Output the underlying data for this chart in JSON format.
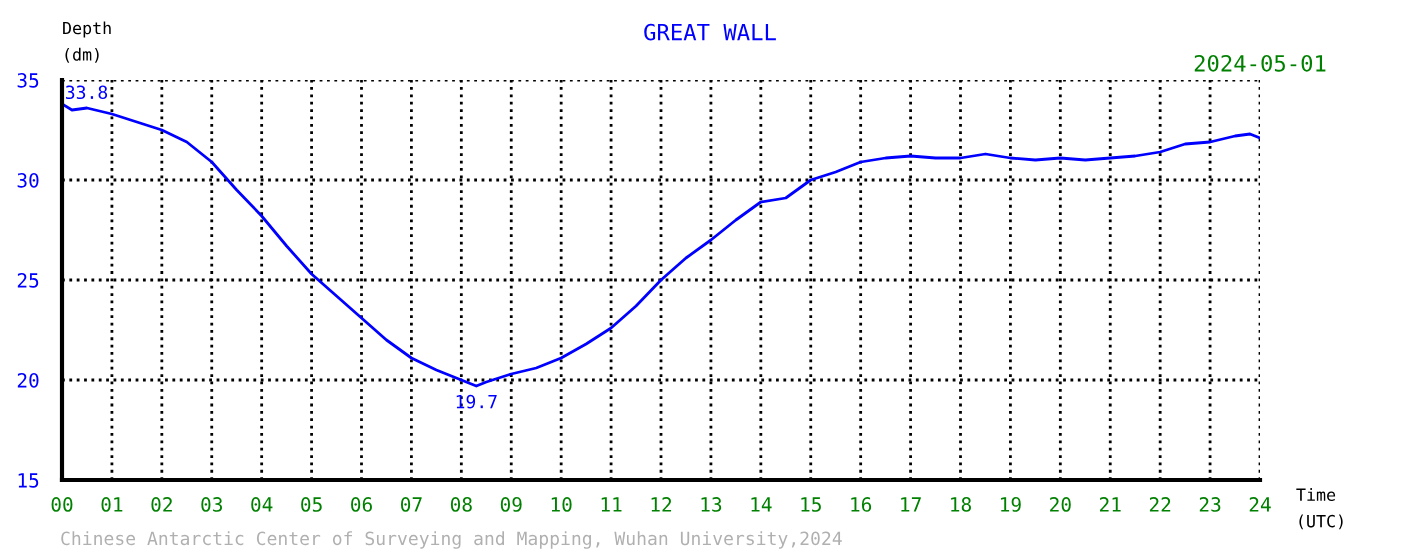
{
  "chart_data": {
    "type": "line",
    "title": "GREAT WALL",
    "subtitle": "2024-05-01",
    "xlabel": "Time\n(UTC)",
    "ylabel": "Depth\n(dm)",
    "x": [
      0,
      0.2,
      0.5,
      1.0,
      1.5,
      2.0,
      2.5,
      3.0,
      3.5,
      4.0,
      4.5,
      5.0,
      5.5,
      6.0,
      6.5,
      7.0,
      7.5,
      8.0,
      8.3,
      8.5,
      9.0,
      9.5,
      10.0,
      10.5,
      11.0,
      11.5,
      12.0,
      12.5,
      13.0,
      13.5,
      14.0,
      14.5,
      15.0,
      15.5,
      16.0,
      16.5,
      17.0,
      17.5,
      18.0,
      18.5,
      19.0,
      19.5,
      20.0,
      20.5,
      21.0,
      21.5,
      22.0,
      22.5,
      23.0,
      23.5,
      23.8,
      24.0
    ],
    "series": [
      {
        "color": "#0000ff",
        "values": [
          33.8,
          33.5,
          33.6,
          33.3,
          32.9,
          32.5,
          31.9,
          30.9,
          29.5,
          28.2,
          26.7,
          25.3,
          24.2,
          23.1,
          22.0,
          21.1,
          20.5,
          20.0,
          19.7,
          19.9,
          20.3,
          20.6,
          21.1,
          21.8,
          22.6,
          23.7,
          25.0,
          26.1,
          27.0,
          28.0,
          28.9,
          29.1,
          30.0,
          30.4,
          30.9,
          31.1,
          31.2,
          31.1,
          31.1,
          31.3,
          31.1,
          31.0,
          31.1,
          31.0,
          31.1,
          31.2,
          31.4,
          31.8,
          31.9,
          32.2,
          32.3,
          32.1
        ]
      }
    ],
    "xlim": [
      0,
      24
    ],
    "ylim": [
      15,
      35
    ],
    "xticks": [
      {
        "value": 0,
        "label": "00"
      },
      {
        "value": 1,
        "label": "01"
      },
      {
        "value": 2,
        "label": "02"
      },
      {
        "value": 3,
        "label": "03"
      },
      {
        "value": 4,
        "label": "04"
      },
      {
        "value": 5,
        "label": "05"
      },
      {
        "value": 6,
        "label": "06"
      },
      {
        "value": 7,
        "label": "07"
      },
      {
        "value": 8,
        "label": "08"
      },
      {
        "value": 9,
        "label": "09"
      },
      10,
      11,
      12,
      13,
      14,
      15,
      16,
      17,
      18,
      19,
      20,
      21,
      22,
      23,
      24
    ],
    "yticks": [
      15,
      20,
      25,
      30,
      35
    ],
    "grid": true,
    "marker": "none",
    "line_style": "solid",
    "legend": false,
    "annotations": [
      {
        "text": "33.8",
        "x": 0,
        "y": 33.8
      },
      {
        "text": "19.7",
        "x": 8.3,
        "y": 19.7
      },
      "Chinese Antarctic Center of Surveying and Mapping, Wuhan University,2024"
    ]
  }
}
